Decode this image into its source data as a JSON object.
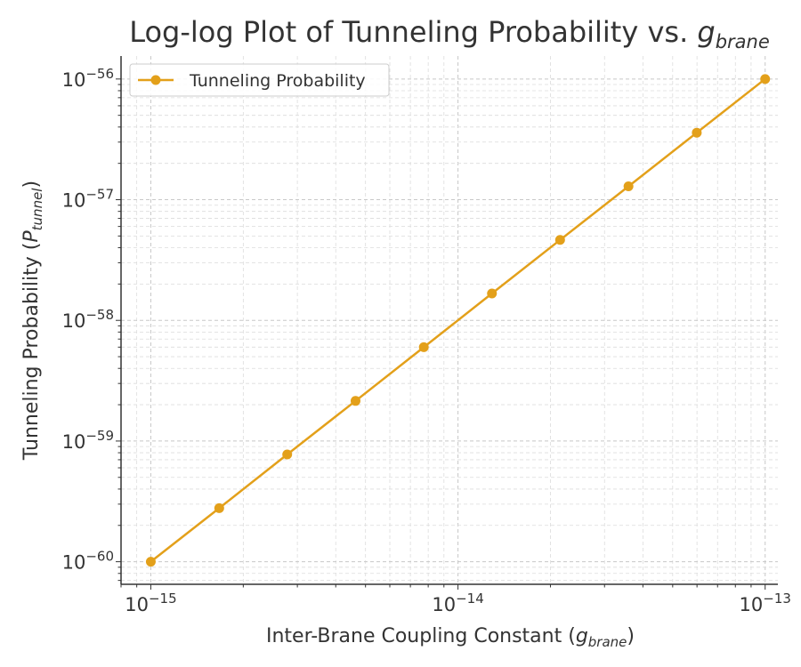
{
  "chart_data": {
    "type": "line",
    "title": "Log-log Plot of Tunneling Probability vs.",
    "title_symbol": "g",
    "title_subscript": "brane",
    "xlabel": "Inter-Brane Coupling Constant (",
    "xlabel_symbol": "g",
    "xlabel_subscript": "brane",
    "xlabel_close": ")",
    "ylabel": "Tunneling Probability (",
    "ylabel_symbol": "P",
    "ylabel_subscript": "tunnel",
    "ylabel_close": ")",
    "x_scale": "log",
    "y_scale": "log",
    "xlim": [
      8e-16,
      1.1e-13
    ],
    "ylim": [
      6.5e-61,
      1.55e-56
    ],
    "xticks": [
      {
        "value": 1e-15,
        "base": "10",
        "exp": "−15"
      },
      {
        "value": 1e-14,
        "base": "10",
        "exp": "−14"
      },
      {
        "value": 1e-13,
        "base": "10",
        "exp": "−13"
      }
    ],
    "yticks": [
      {
        "value": 1e-60,
        "base": "10",
        "exp": "−60"
      },
      {
        "value": 1e-59,
        "base": "10",
        "exp": "−59"
      },
      {
        "value": 1e-58,
        "base": "10",
        "exp": "−58"
      },
      {
        "value": 1e-57,
        "base": "10",
        "exp": "−57"
      },
      {
        "value": 1e-56,
        "base": "10",
        "exp": "−56"
      }
    ],
    "grid": true,
    "legend_position": "top-left",
    "series": [
      {
        "name": "Tunneling Probability",
        "color": "#E3A01A",
        "marker": "circle",
        "x": [
          1e-15,
          1.67e-15,
          2.78e-15,
          4.64e-15,
          7.74e-15,
          1.29e-14,
          2.15e-14,
          3.59e-14,
          5.99e-14,
          1e-13
        ],
        "y": [
          1e-60,
          2.78e-60,
          7.74e-60,
          2.15e-59,
          5.99e-59,
          1.67e-58,
          4.64e-58,
          1.29e-57,
          3.59e-57,
          1e-56
        ]
      }
    ]
  }
}
